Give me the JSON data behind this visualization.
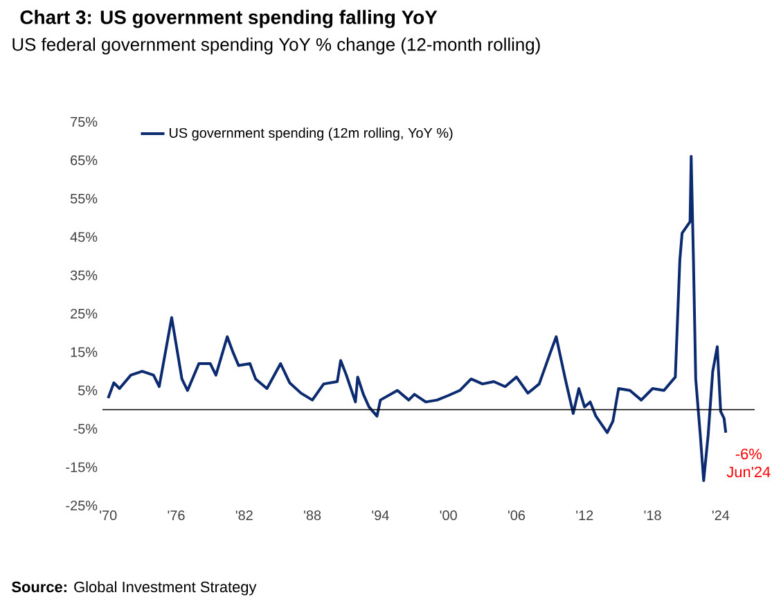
{
  "chart_data": {
    "type": "line",
    "title": "Chart 3: US government spending falling YoY",
    "subtitle": "US federal government spending YoY % change (12-month rolling)",
    "x": [
      1970.0,
      1970.5,
      1971.0,
      1972.0,
      1973.0,
      1974.0,
      1974.5,
      1975.6,
      1976.5,
      1977.0,
      1978.0,
      1979.0,
      1979.5,
      1980.5,
      1981.0,
      1981.5,
      1982.5,
      1983.0,
      1984.0,
      1985.2,
      1986.0,
      1987.0,
      1988.0,
      1989.0,
      1990.2,
      1990.5,
      1991.0,
      1991.8,
      1992.0,
      1992.5,
      1993.0,
      1993.7,
      1994.0,
      1995.5,
      1996.5,
      1997.0,
      1998.0,
      1999.0,
      2000.0,
      2001.0,
      2002.0,
      2003.0,
      2004.0,
      2005.0,
      2006.0,
      2007.0,
      2008.0,
      2009.0,
      2009.5,
      2010.3,
      2011.0,
      2011.5,
      2012.0,
      2012.5,
      2013.0,
      2014.0,
      2014.5,
      2015.0,
      2016.0,
      2017.0,
      2018.0,
      2019.0,
      2020.0,
      2020.4,
      2020.6,
      2021.3,
      2021.4,
      2021.6,
      2021.8,
      2022.2,
      2022.5,
      2022.9,
      2023.3,
      2023.7,
      2024.0,
      2024.3,
      2024.45
    ],
    "series": [
      {
        "name": "US government spending (12m rolling, YoY %)",
        "color": "#0b2a6f",
        "values": [
          3,
          7,
          5.5,
          9,
          10,
          9,
          6,
          24,
          8,
          5,
          12,
          12,
          9,
          19,
          15,
          11.5,
          12,
          8,
          5.5,
          12,
          7,
          4.3,
          2.5,
          6.7,
          7.3,
          12.8,
          9,
          2,
          8.5,
          4,
          0.7,
          -1.7,
          2.5,
          5,
          2.5,
          4,
          2,
          2.5,
          3.7,
          5,
          8,
          6.7,
          7.3,
          6,
          8.5,
          4.3,
          6.7,
          15,
          19,
          8,
          -1,
          5.5,
          0.7,
          2,
          -1.7,
          -6,
          -3,
          5.5,
          5,
          2.5,
          5.5,
          5,
          8.5,
          39,
          46,
          49,
          66,
          39,
          8,
          -6.5,
          -18.5,
          -6.5,
          10,
          16.4,
          -0.5,
          -2.3,
          -6
        ]
      }
    ],
    "xlim": [
      1969.5,
      2027
    ],
    "ylim": [
      -25,
      75
    ],
    "xticks": [
      {
        "value": 1970,
        "label": "'70"
      },
      {
        "value": 1976,
        "label": "'76"
      },
      {
        "value": 1982,
        "label": "'82"
      },
      {
        "value": 1988,
        "label": "'88"
      },
      {
        "value": 1994,
        "label": "'94"
      },
      {
        "value": 2000,
        "label": "'00"
      },
      {
        "value": 2006,
        "label": "'06"
      },
      {
        "value": 2012,
        "label": "'12"
      },
      {
        "value": 2018,
        "label": "'18"
      },
      {
        "value": 2024,
        "label": "'24"
      }
    ],
    "yticks": [
      {
        "value": -25,
        "label": "-25%"
      },
      {
        "value": -15,
        "label": "-15%"
      },
      {
        "value": -5,
        "label": "-5%"
      },
      {
        "value": 5,
        "label": "5%"
      },
      {
        "value": 15,
        "label": "15%"
      },
      {
        "value": 25,
        "label": "25%"
      },
      {
        "value": 35,
        "label": "35%"
      },
      {
        "value": 45,
        "label": "45%"
      },
      {
        "value": 55,
        "label": "55%"
      },
      {
        "value": 65,
        "label": "65%"
      },
      {
        "value": 75,
        "label": "75%"
      }
    ],
    "ref_lines": [
      {
        "axis": "y",
        "value": 0,
        "color": "#000000"
      }
    ],
    "annotations": [
      {
        "text": "-6% Jun'24",
        "x": 2024.45,
        "y": -6
      },
      "**Source:** Global Investment Strategy"
    ],
    "legend": "top left",
    "marker": "none",
    "line_style": "solid",
    "grid": false
  }
}
